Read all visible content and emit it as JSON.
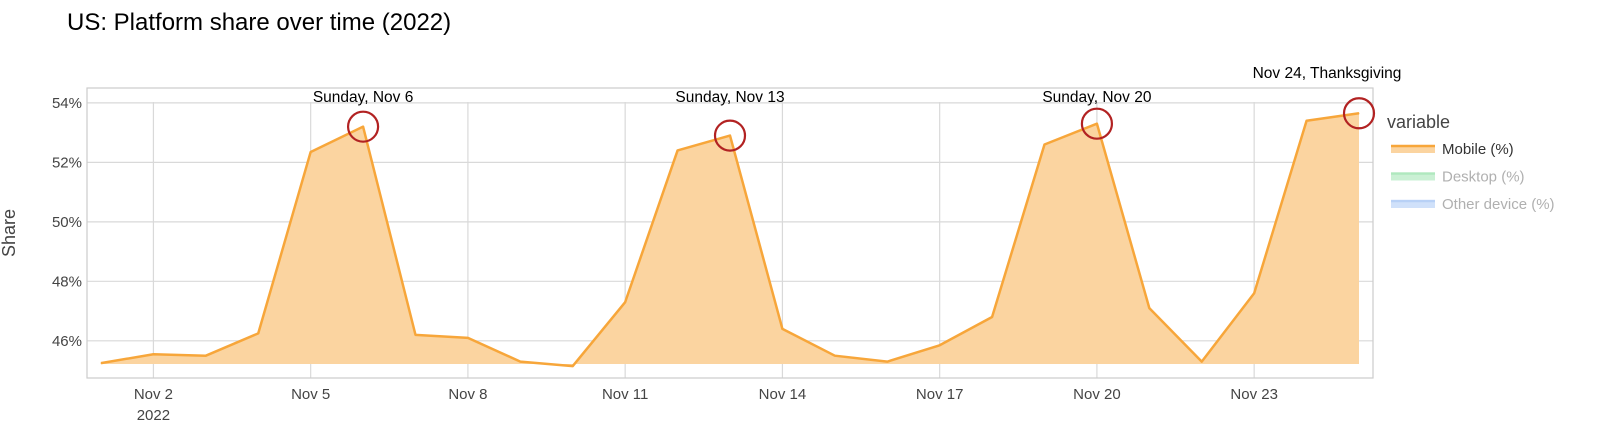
{
  "chart_data": {
    "type": "area",
    "title": "US: Platform share over time (2022)",
    "xlabel": "",
    "ylabel": "Share",
    "x": [
      "2022-11-01",
      "2022-11-02",
      "2022-11-03",
      "2022-11-04",
      "2022-11-05",
      "2022-11-06",
      "2022-11-07",
      "2022-11-08",
      "2022-11-09",
      "2022-11-10",
      "2022-11-11",
      "2022-11-12",
      "2022-11-13",
      "2022-11-14",
      "2022-11-15",
      "2022-11-16",
      "2022-11-17",
      "2022-11-18",
      "2022-11-19",
      "2022-11-20",
      "2022-11-21",
      "2022-11-22",
      "2022-11-23",
      "2022-11-24",
      "2022-11-25"
    ],
    "series": [
      {
        "name": "Mobile (%)",
        "color": "#F7A63A",
        "fill": "#FBD4A0",
        "visible": true,
        "values": [
          45.25,
          45.55,
          45.5,
          46.25,
          52.35,
          53.2,
          46.2,
          46.1,
          45.3,
          45.15,
          47.3,
          52.4,
          52.9,
          46.4,
          45.5,
          45.3,
          45.85,
          46.8,
          52.6,
          53.3,
          47.1,
          45.3,
          47.6,
          53.4,
          53.65
        ]
      }
    ],
    "x_ticks": [
      {
        "x": "2022-11-02",
        "label": "Nov 2",
        "sublabel": "2022"
      },
      {
        "x": "2022-11-05",
        "label": "Nov 5"
      },
      {
        "x": "2022-11-08",
        "label": "Nov 8"
      },
      {
        "x": "2022-11-11",
        "label": "Nov 11"
      },
      {
        "x": "2022-11-14",
        "label": "Nov 14"
      },
      {
        "x": "2022-11-17",
        "label": "Nov 17"
      },
      {
        "x": "2022-11-20",
        "label": "Nov 20"
      },
      {
        "x": "2022-11-23",
        "label": "Nov 23"
      }
    ],
    "y_ticks": [
      {
        "value": 46,
        "label": "46%"
      },
      {
        "value": 48,
        "label": "48%"
      },
      {
        "value": 50,
        "label": "50%"
      },
      {
        "value": 52,
        "label": "52%"
      },
      {
        "value": 54,
        "label": "54%"
      }
    ],
    "xlim": [
      "2022-11-01",
      "2022-11-25"
    ],
    "ylim": [
      44.75,
      54.5
    ],
    "grid": true,
    "legend": {
      "title": "variable",
      "placement": "right",
      "entries": [
        {
          "label": "Mobile (%)",
          "color": "#F7A63A",
          "active": true
        },
        {
          "label": "Desktop (%)",
          "color": "#9EE3B0",
          "active": false
        },
        {
          "label": "Other device (%)",
          "color": "#A9C8F5",
          "active": false
        }
      ]
    },
    "annotations": [
      {
        "x": "2022-11-06",
        "y": 53.2,
        "text": "Sunday, Nov 6"
      },
      {
        "x": "2022-11-13",
        "y": 52.9,
        "text": "Sunday, Nov 13"
      },
      {
        "x": "2022-11-20",
        "y": 53.3,
        "text": "Sunday, Nov 20"
      },
      {
        "x": "2022-11-25",
        "y": 53.65,
        "text": "Nov 24, Thanksgiving"
      }
    ],
    "annotation_color": "#B22222"
  }
}
